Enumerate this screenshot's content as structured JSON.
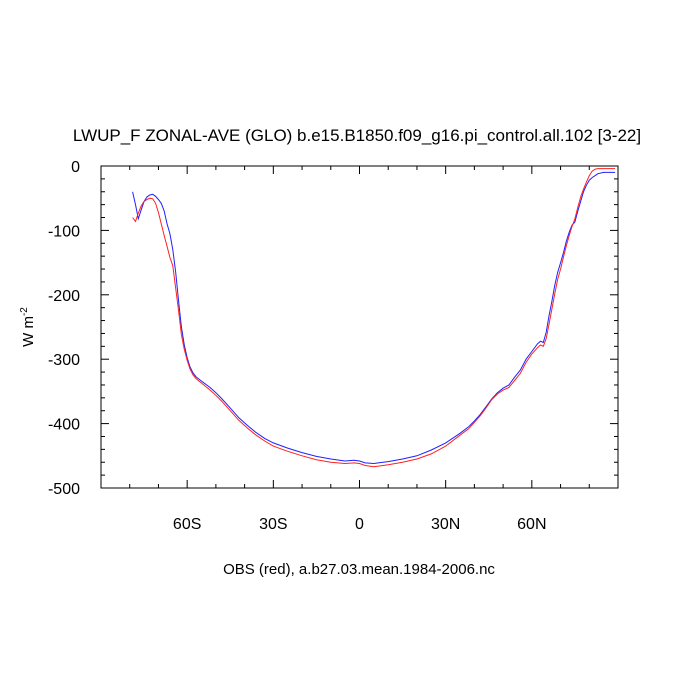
{
  "chart_data": {
    "type": "line",
    "title": "LWUP_F ZONAL-AVE (GLO) b.e15.B1850.f09_g16.pi_control.all.102 [3-22]",
    "xlabel": "OBS (red), a.b27.03.mean.1984-2006.nc",
    "ylabel_main": "W m",
    "ylabel_sup": "-2",
    "xlim": [
      -90,
      90
    ],
    "ylim": [
      -500,
      0
    ],
    "x_ticks": [
      {
        "value": -60,
        "label": "60S"
      },
      {
        "value": -30,
        "label": "30S"
      },
      {
        "value": 0,
        "label": "0"
      },
      {
        "value": 30,
        "label": "30N"
      },
      {
        "value": 60,
        "label": "60N"
      }
    ],
    "x_minor_step": 10,
    "y_ticks": [
      {
        "value": 0,
        "label": "0"
      },
      {
        "value": -100,
        "label": "-100"
      },
      {
        "value": -200,
        "label": "-200"
      },
      {
        "value": -300,
        "label": "-300"
      },
      {
        "value": -400,
        "label": "-400"
      },
      {
        "value": -500,
        "label": "-500"
      }
    ],
    "y_minor_step": 20,
    "grid": false,
    "series": [
      {
        "color": "#2020ff",
        "points": [
          [
            -79,
            -40
          ],
          [
            -78,
            -60
          ],
          [
            -77,
            -82
          ],
          [
            -76,
            -68
          ],
          [
            -75,
            -55
          ],
          [
            -74,
            -48
          ],
          [
            -73,
            -45
          ],
          [
            -72,
            -44
          ],
          [
            -71,
            -47
          ],
          [
            -70,
            -52
          ],
          [
            -69,
            -58
          ],
          [
            -68,
            -70
          ],
          [
            -67,
            -90
          ],
          [
            -66,
            -105
          ],
          [
            -65,
            -130
          ],
          [
            -64,
            -165
          ],
          [
            -63,
            -210
          ],
          [
            -62,
            -250
          ],
          [
            -61,
            -278
          ],
          [
            -60,
            -298
          ],
          [
            -59,
            -312
          ],
          [
            -58,
            -321
          ],
          [
            -57,
            -327
          ],
          [
            -55,
            -334
          ],
          [
            -52,
            -344
          ],
          [
            -50,
            -352
          ],
          [
            -48,
            -361
          ],
          [
            -45,
            -376
          ],
          [
            -42,
            -391
          ],
          [
            -39,
            -403
          ],
          [
            -36,
            -414
          ],
          [
            -33,
            -423
          ],
          [
            -30,
            -430
          ],
          [
            -25,
            -438
          ],
          [
            -20,
            -445
          ],
          [
            -15,
            -451
          ],
          [
            -10,
            -455
          ],
          [
            -5,
            -458
          ],
          [
            -2,
            -457
          ],
          [
            0,
            -458
          ],
          [
            2,
            -461
          ],
          [
            5,
            -462
          ],
          [
            10,
            -459
          ],
          [
            15,
            -455
          ],
          [
            20,
            -450
          ],
          [
            25,
            -441
          ],
          [
            30,
            -430
          ],
          [
            35,
            -415
          ],
          [
            38,
            -405
          ],
          [
            40,
            -396
          ],
          [
            42,
            -386
          ],
          [
            44,
            -374
          ],
          [
            46,
            -362
          ],
          [
            48,
            -352
          ],
          [
            50,
            -345
          ],
          [
            52,
            -340
          ],
          [
            54,
            -328
          ],
          [
            56,
            -317
          ],
          [
            58,
            -300
          ],
          [
            60,
            -288
          ],
          [
            62,
            -276
          ],
          [
            63,
            -272
          ],
          [
            64,
            -274
          ],
          [
            65,
            -258
          ],
          [
            66,
            -232
          ],
          [
            67,
            -210
          ],
          [
            68,
            -185
          ],
          [
            69,
            -165
          ],
          [
            70,
            -150
          ],
          [
            71,
            -135
          ],
          [
            72,
            -117
          ],
          [
            73,
            -103
          ],
          [
            74,
            -92
          ],
          [
            75,
            -87
          ],
          [
            76,
            -70
          ],
          [
            77,
            -55
          ],
          [
            78,
            -40
          ],
          [
            79,
            -30
          ],
          [
            80,
            -22
          ],
          [
            81,
            -18
          ],
          [
            82,
            -15
          ],
          [
            83,
            -12
          ],
          [
            85,
            -10
          ],
          [
            87,
            -10
          ],
          [
            89,
            -10
          ]
        ]
      },
      {
        "color": "#ff2020",
        "points": [
          [
            -79,
            -80
          ],
          [
            -78,
            -86
          ],
          [
            -77,
            -73
          ],
          [
            -76,
            -62
          ],
          [
            -75,
            -55
          ],
          [
            -74,
            -52
          ],
          [
            -73,
            -50
          ],
          [
            -72,
            -51
          ],
          [
            -71,
            -58
          ],
          [
            -70,
            -72
          ],
          [
            -69,
            -90
          ],
          [
            -68,
            -108
          ],
          [
            -67,
            -125
          ],
          [
            -66,
            -142
          ],
          [
            -65,
            -155
          ],
          [
            -64,
            -190
          ],
          [
            -63,
            -225
          ],
          [
            -62,
            -262
          ],
          [
            -61,
            -285
          ],
          [
            -60,
            -302
          ],
          [
            -59,
            -315
          ],
          [
            -58,
            -324
          ],
          [
            -57,
            -330
          ],
          [
            -55,
            -337
          ],
          [
            -52,
            -348
          ],
          [
            -50,
            -356
          ],
          [
            -48,
            -365
          ],
          [
            -45,
            -380
          ],
          [
            -42,
            -395
          ],
          [
            -39,
            -407
          ],
          [
            -36,
            -418
          ],
          [
            -33,
            -427
          ],
          [
            -30,
            -435
          ],
          [
            -25,
            -443
          ],
          [
            -20,
            -450
          ],
          [
            -15,
            -456
          ],
          [
            -10,
            -460
          ],
          [
            -5,
            -462
          ],
          [
            -2,
            -461
          ],
          [
            0,
            -462
          ],
          [
            2,
            -465
          ],
          [
            5,
            -467
          ],
          [
            10,
            -464
          ],
          [
            15,
            -460
          ],
          [
            20,
            -455
          ],
          [
            25,
            -447
          ],
          [
            30,
            -435
          ],
          [
            35,
            -418
          ],
          [
            38,
            -408
          ],
          [
            40,
            -398
          ],
          [
            42,
            -388
          ],
          [
            44,
            -376
          ],
          [
            46,
            -363
          ],
          [
            48,
            -354
          ],
          [
            50,
            -348
          ],
          [
            52,
            -344
          ],
          [
            54,
            -333
          ],
          [
            56,
            -322
          ],
          [
            58,
            -305
          ],
          [
            60,
            -292
          ],
          [
            62,
            -282
          ],
          [
            63,
            -278
          ],
          [
            64,
            -280
          ],
          [
            65,
            -268
          ],
          [
            66,
            -245
          ],
          [
            67,
            -222
          ],
          [
            68,
            -198
          ],
          [
            69,
            -176
          ],
          [
            70,
            -160
          ],
          [
            71,
            -142
          ],
          [
            72,
            -124
          ],
          [
            73,
            -108
          ],
          [
            74,
            -94
          ],
          [
            75,
            -82
          ],
          [
            76,
            -64
          ],
          [
            77,
            -48
          ],
          [
            78,
            -36
          ],
          [
            79,
            -25
          ],
          [
            80,
            -15
          ],
          [
            81,
            -8
          ],
          [
            82,
            -5
          ],
          [
            83,
            -4
          ],
          [
            85,
            -4
          ],
          [
            87,
            -4
          ],
          [
            89,
            -4
          ]
        ]
      }
    ]
  }
}
